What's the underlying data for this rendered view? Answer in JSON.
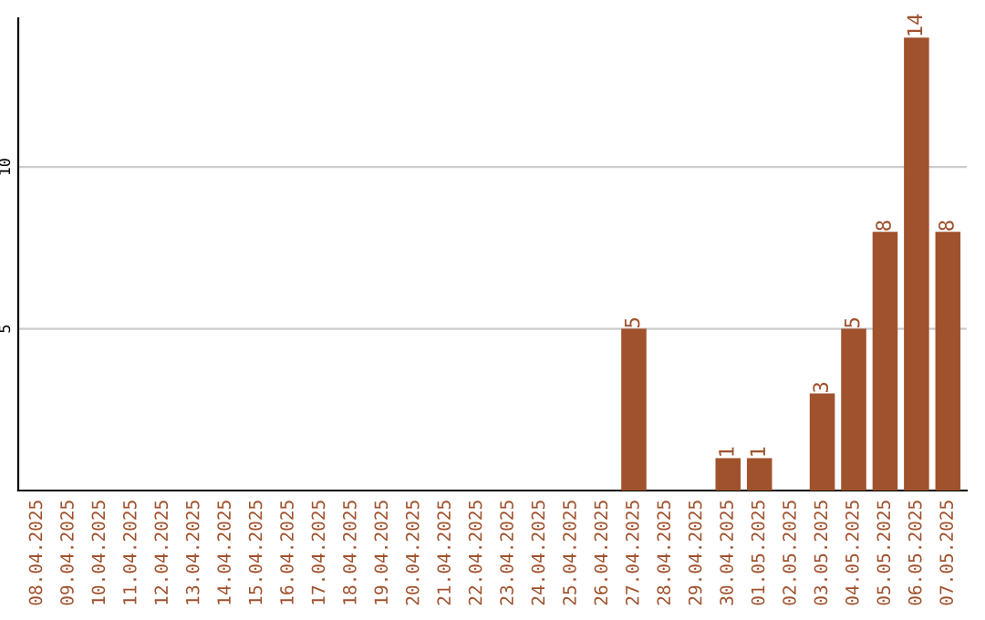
{
  "chart_data": {
    "type": "bar",
    "categories": [
      "08.04.2025",
      "09.04.2025",
      "10.04.2025",
      "11.04.2025",
      "12.04.2025",
      "13.04.2025",
      "14.04.2025",
      "15.04.2025",
      "16.04.2025",
      "17.04.2025",
      "18.04.2025",
      "19.04.2025",
      "20.04.2025",
      "21.04.2025",
      "22.04.2025",
      "23.04.2025",
      "24.04.2025",
      "25.04.2025",
      "26.04.2025",
      "27.04.2025",
      "28.04.2025",
      "29.04.2025",
      "30.04.2025",
      "01.05.2025",
      "02.05.2025",
      "03.05.2025",
      "04.05.2025",
      "05.05.2025",
      "06.05.2025",
      "07.05.2025"
    ],
    "values": [
      0,
      0,
      0,
      0,
      0,
      0,
      0,
      0,
      0,
      0,
      0,
      0,
      0,
      0,
      0,
      0,
      0,
      0,
      0,
      5,
      0,
      0,
      1,
      1,
      0,
      3,
      5,
      8,
      14,
      8
    ],
    "value_labels": [
      null,
      null,
      null,
      null,
      null,
      null,
      null,
      null,
      null,
      null,
      null,
      null,
      null,
      null,
      null,
      null,
      null,
      null,
      null,
      "5",
      null,
      null,
      "1",
      "1",
      null,
      "3",
      "5",
      "8",
      "14",
      "8"
    ],
    "color": "#a0522d",
    "ylim": [
      0,
      14.6
    ],
    "yticks": [
      5,
      10
    ],
    "grid": "y"
  }
}
